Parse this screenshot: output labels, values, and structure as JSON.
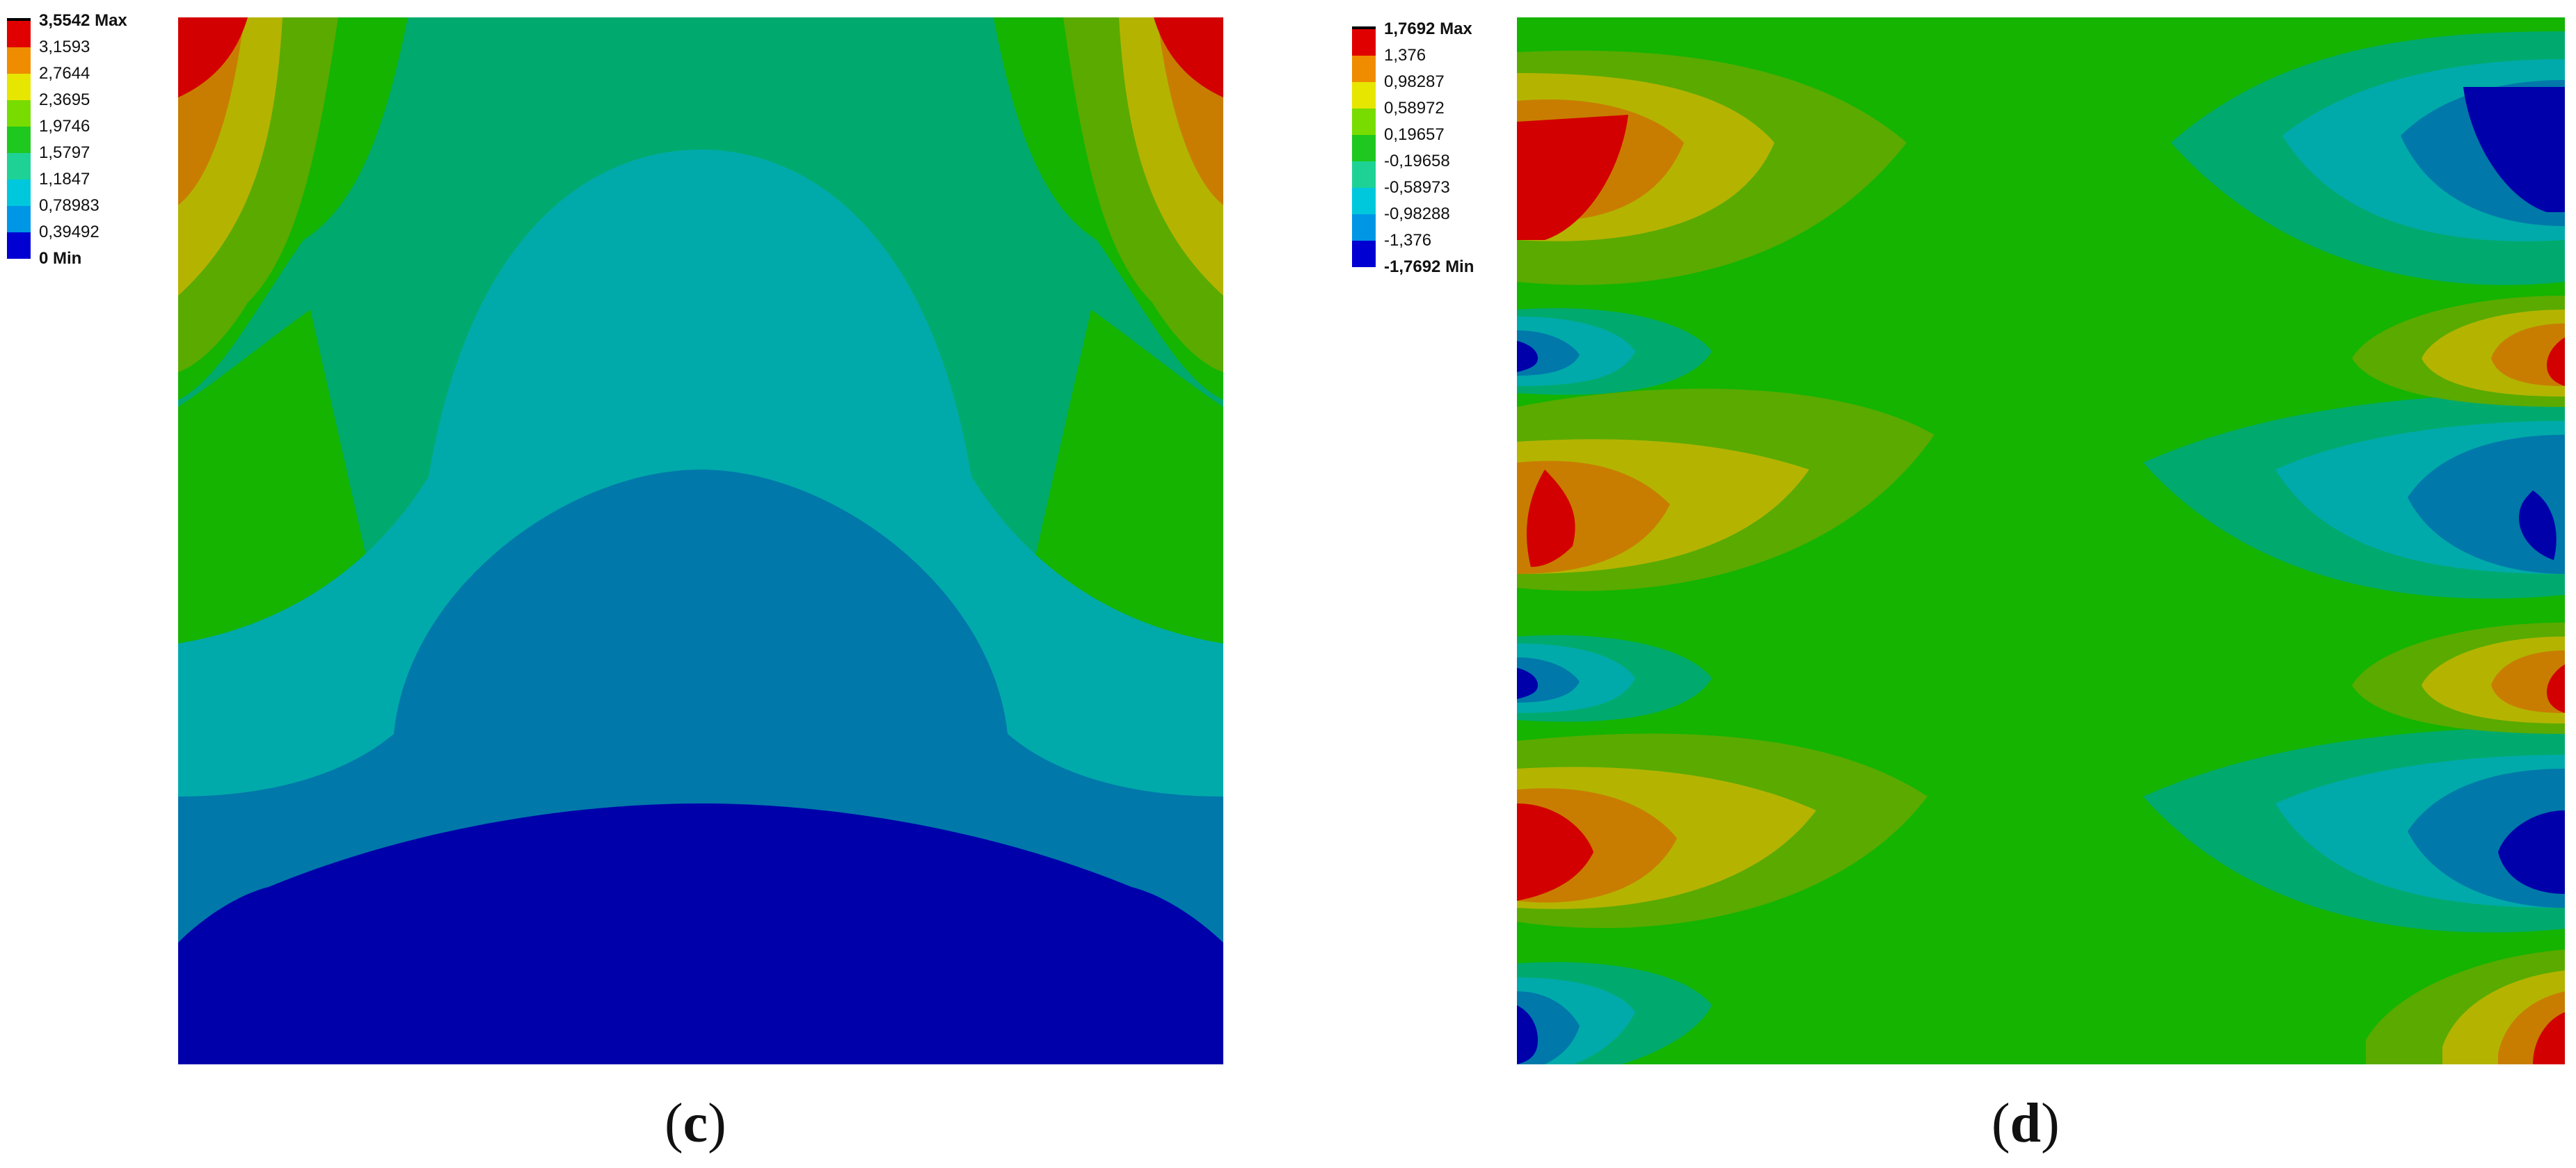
{
  "colors": {
    "red": "#d20000",
    "orange": "#c87d00",
    "yellow": "#b4b400",
    "yellowgreen": "#5aaa00",
    "green": "#14b400",
    "teal": "#00aa6e",
    "cyan": "#00aaaa",
    "steel": "#0078aa",
    "blue": "#0000aa"
  },
  "legend_c": {
    "labels": [
      "3,5542 Max",
      "3,1593",
      "2,7644",
      "2,3695",
      "1,9746",
      "1,5797",
      "1,1847",
      "0,78983",
      "0,39492",
      "0 Min"
    ],
    "colors": [
      "#e00000",
      "#f08c00",
      "#e6e600",
      "#78dc00",
      "#1ec81e",
      "#1ed296",
      "#00c8dc",
      "#0096e6",
      "#0000d2"
    ]
  },
  "legend_d": {
    "labels": [
      "1,7692 Max",
      "1,376",
      "0,98287",
      "0,58972",
      "0,19657",
      "-0,19658",
      "-0,58973",
      "-0,98288",
      "-1,376",
      "-1,7692 Min"
    ],
    "colors": [
      "#e00000",
      "#f08c00",
      "#e6e600",
      "#78dc00",
      "#1ec81e",
      "#1ed296",
      "#00c8dc",
      "#0096e6",
      "#0000d2"
    ]
  },
  "captions": {
    "c_open": "(",
    "c_letter": "c",
    "c_close": ")",
    "d_open": "(",
    "d_letter": "d",
    "d_close": ")"
  }
}
